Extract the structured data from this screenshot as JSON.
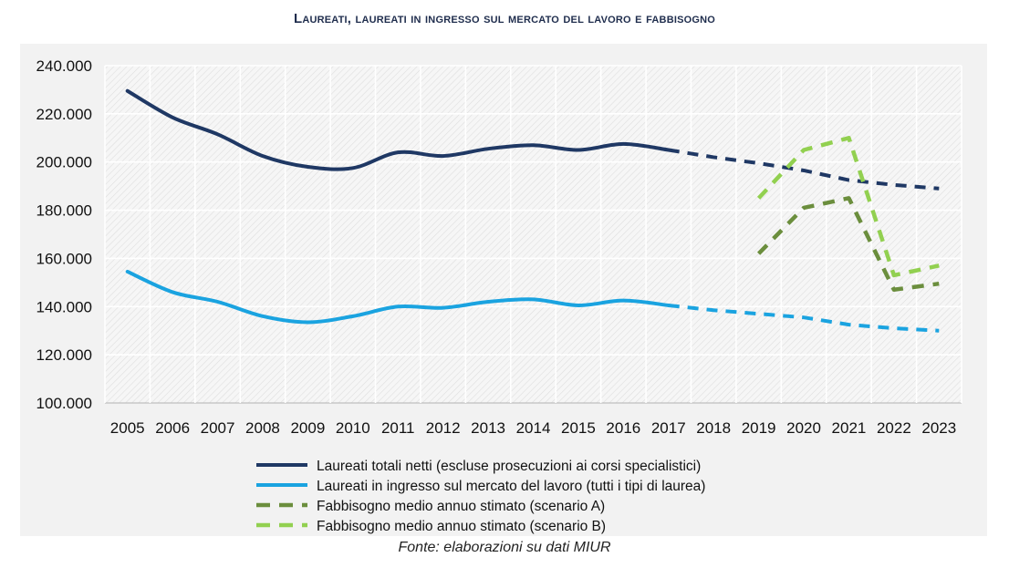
{
  "chart_data": {
    "type": "line",
    "title": "Laureati, laureati in ingresso sul mercato del lavoro e fabbisogno",
    "xlabel": "",
    "ylabel": "",
    "x": [
      "2005",
      "2006",
      "2007",
      "2008",
      "2009",
      "2010",
      "2011",
      "2012",
      "2013",
      "2014",
      "2015",
      "2016",
      "2017",
      "2018",
      "2019",
      "2020",
      "2021",
      "2022",
      "2023"
    ],
    "ylim": [
      100000,
      240000
    ],
    "yticks": [
      "100.000",
      "120.000",
      "140.000",
      "160.000",
      "180.000",
      "200.000",
      "220.000",
      "240.000"
    ],
    "grid": true,
    "legend_position": "bottom",
    "series": [
      {
        "name": "Laureati totali netti (escluse prosecuzioni ai corsi specialistici)",
        "color": "#1f3864",
        "style": "solid-then-dashed",
        "values": [
          229500,
          218500,
          211500,
          202500,
          198000,
          197500,
          204000,
          202500,
          205500,
          207000,
          205000,
          207500,
          205000,
          202000,
          199500,
          196500,
          192500,
          190500,
          189000
        ],
        "dashed_from": "2017"
      },
      {
        "name": "Laureati in ingresso sul mercato del lavoro (tutti i tipi di laurea)",
        "color": "#1aa3e0",
        "style": "solid-then-dashed",
        "values": [
          154500,
          146000,
          142000,
          136000,
          133500,
          136000,
          140000,
          139500,
          142000,
          143000,
          140500,
          142500,
          140500,
          138500,
          137000,
          135500,
          132500,
          131000,
          130000
        ],
        "dashed_from": "2017"
      },
      {
        "name": "Fabbisogno medio annuo stimato (scenario A)",
        "color": "#6b8e3d",
        "style": "dashed",
        "values": [
          null,
          null,
          null,
          null,
          null,
          null,
          null,
          null,
          null,
          null,
          null,
          null,
          null,
          null,
          162000,
          181000,
          185000,
          147000,
          149500
        ]
      },
      {
        "name": "Fabbisogno medio annuo stimato (scenario B)",
        "color": "#92d050",
        "style": "dashed",
        "values": [
          null,
          null,
          null,
          null,
          null,
          null,
          null,
          null,
          null,
          null,
          null,
          null,
          null,
          null,
          185000,
          205000,
          210000,
          153000,
          157000
        ]
      }
    ],
    "source": "Fonte: elaborazioni su dati MIUR"
  }
}
